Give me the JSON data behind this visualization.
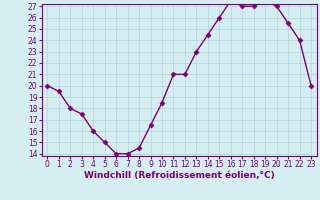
{
  "x": [
    0,
    1,
    2,
    3,
    4,
    5,
    6,
    7,
    8,
    9,
    10,
    11,
    12,
    13,
    14,
    15,
    16,
    17,
    18,
    19,
    20,
    21,
    22,
    23
  ],
  "y": [
    20,
    19.5,
    18,
    17.5,
    16,
    15,
    14,
    14,
    14.5,
    16.5,
    18.5,
    21,
    21,
    23,
    24.5,
    26,
    27.5,
    27,
    27,
    27.5,
    27,
    25.5,
    24,
    20
  ],
  "line_color": "#7b0079",
  "marker": "D",
  "marker_size": 2.5,
  "bg_color": "#d5eef2",
  "grid_color": "#b8d8df",
  "xlabel": "Windchill (Refroidissement éolien,°C)",
  "ylim": [
    14,
    27
  ],
  "xlim": [
    -0.5,
    23.5
  ],
  "yticks": [
    14,
    15,
    16,
    17,
    18,
    19,
    20,
    21,
    22,
    23,
    24,
    25,
    26,
    27
  ],
  "xticks": [
    0,
    1,
    2,
    3,
    4,
    5,
    6,
    7,
    8,
    9,
    10,
    11,
    12,
    13,
    14,
    15,
    16,
    17,
    18,
    19,
    20,
    21,
    22,
    23
  ],
  "tick_fontsize": 5.5,
  "xlabel_fontsize": 6.5,
  "line_width": 1.0
}
